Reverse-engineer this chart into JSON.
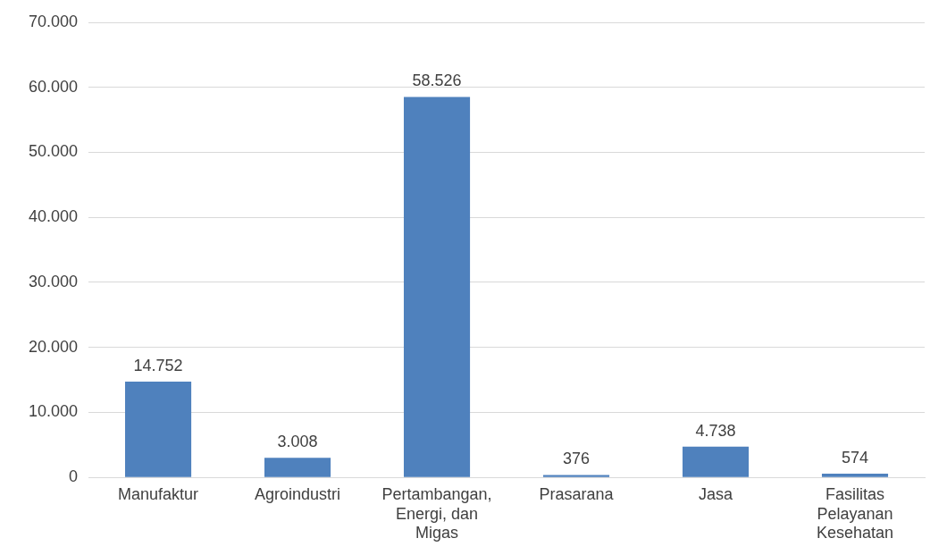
{
  "chart_data": {
    "type": "bar",
    "categories": [
      "Manufaktur",
      "Agroindustri",
      "Pertambangan, Energi, dan Migas",
      "Prasarana",
      "Jasa",
      "Fasilitas Pelayanan Kesehatan"
    ],
    "values": [
      14752,
      3008,
      58526,
      376,
      4738,
      574
    ],
    "value_labels": [
      "14.752",
      "3.008",
      "58.526",
      "376",
      "4.738",
      "574"
    ],
    "color": "#4f81bd",
    "ylim": [
      0,
      70000
    ],
    "yticks": [
      {
        "value": 0,
        "label": "0"
      },
      {
        "value": 10000,
        "label": "10.000"
      },
      {
        "value": 20000,
        "label": "20.000"
      },
      {
        "value": 30000,
        "label": "30.000"
      },
      {
        "value": 40000,
        "label": "40.000"
      },
      {
        "value": 50000,
        "label": "50.000"
      },
      {
        "value": 60000,
        "label": "60.000"
      },
      {
        "value": 70000,
        "label": "70.000"
      }
    ],
    "grid": "y",
    "legend": false
  }
}
